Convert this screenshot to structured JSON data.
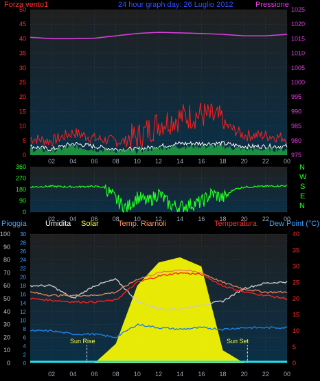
{
  "top": {
    "left_label": "Forza vento1",
    "title": "24 hour graph day: 26 Luglio 2012",
    "right_label": "Pressione",
    "colors": {
      "left": "#ff3030",
      "title": "#3050ff",
      "right": "#e040e0"
    }
  },
  "dir_letters": [
    "N",
    "W",
    "S",
    "E",
    "N"
  ],
  "bottom": {
    "labels": [
      "Pioggia",
      "Umidita",
      "Solar",
      "Temp. Riarnoli",
      "Temperatura",
      "Dew Point (°C)"
    ],
    "label_colors": [
      "#40a0ff",
      "#ffffff",
      "#ffff40",
      "#ff9060",
      "#ff3030",
      "#40a0ff"
    ],
    "sun_rise": "Sun Rise",
    "sun_set": "Sun Set"
  },
  "chart_data": [
    {
      "type": "line",
      "name": "wind-pressure",
      "x_ticks": [
        "02",
        "04",
        "06",
        "08",
        "10",
        "12",
        "14",
        "16",
        "18",
        "20",
        "22",
        "00"
      ],
      "y_left_ticks": [
        "0",
        "5",
        "10",
        "15",
        "20",
        "25",
        "30",
        "35",
        "40",
        "45",
        "50"
      ],
      "y_right_ticks": [
        "975",
        "980",
        "985",
        "990",
        "995",
        "1000",
        "1005",
        "1010",
        "1015",
        "1020",
        "1025"
      ],
      "ylim_left": [
        0,
        50
      ],
      "ylim_right": [
        975,
        1025
      ],
      "hours": [
        0,
        2,
        4,
        6,
        8,
        10,
        12,
        14,
        16,
        18,
        20,
        22,
        24
      ],
      "series": [
        {
          "key": "pressure",
          "axis": "right",
          "color": "#e040e0",
          "values": [
            1015.5,
            1015.0,
            1015.0,
            1015.2,
            1016.0,
            1016.8,
            1017.2,
            1017.0,
            1016.8,
            1016.5,
            1016.0,
            1016.0,
            1016.5
          ]
        },
        {
          "key": "gust",
          "axis": "left",
          "color": "#ff2020",
          "values": [
            5,
            4,
            7,
            5,
            4,
            4,
            9,
            11,
            12,
            10,
            6,
            6,
            5
          ]
        },
        {
          "key": "wind",
          "axis": "left",
          "color": "#ffffff",
          "values": [
            3,
            2,
            4,
            3,
            2,
            2,
            3,
            4,
            4,
            4,
            3,
            3,
            3
          ]
        },
        {
          "key": "wind_bar",
          "axis": "left",
          "color": "#20a040",
          "values": [
            2,
            1.5,
            3,
            2,
            1.5,
            1.5,
            2.5,
            3,
            3,
            3,
            2,
            2,
            2
          ]
        }
      ]
    },
    {
      "type": "line",
      "name": "wind-direction",
      "x_ticks": [
        "02",
        "04",
        "06",
        "08",
        "10",
        "12",
        "14",
        "16",
        "18",
        "20",
        "22",
        "00"
      ],
      "y_ticks": [
        "0",
        "90",
        "180",
        "270",
        "360"
      ],
      "ylim": [
        0,
        360
      ],
      "hours": [
        0,
        2,
        4,
        6,
        7,
        8,
        9,
        10,
        11,
        12,
        13,
        14,
        15,
        16,
        17,
        18,
        19,
        20,
        22,
        24
      ],
      "series": [
        {
          "key": "direction",
          "color": "#20ff20",
          "values": [
            200,
            205,
            200,
            205,
            195,
            100,
            30,
            120,
            80,
            150,
            60,
            40,
            60,
            80,
            150,
            110,
            180,
            200,
            205,
            210
          ]
        }
      ]
    },
    {
      "type": "line",
      "name": "temp-hum-rain-solar",
      "x_ticks": [
        "02",
        "04",
        "06",
        "08",
        "10",
        "12",
        "14",
        "16",
        "18",
        "20",
        "22",
        "00"
      ],
      "y_left_ticks": [
        "0",
        "10",
        "20",
        "30",
        "40",
        "50",
        "60",
        "70",
        "80",
        "90",
        "100"
      ],
      "y_rain_ticks": [
        "0",
        "2",
        "4",
        "6",
        "8",
        "10",
        "12",
        "14",
        "16",
        "18",
        "20",
        "22",
        "24",
        "26",
        "28",
        "30"
      ],
      "y_right_ticks": [
        "0",
        "5",
        "10",
        "15",
        "20",
        "25",
        "30",
        "35",
        "40"
      ],
      "ylim_left": [
        0,
        100
      ],
      "ylim_right": [
        0,
        40
      ],
      "hours": [
        0,
        2,
        4,
        6,
        8,
        10,
        12,
        14,
        16,
        18,
        20,
        22,
        24
      ],
      "series": [
        {
          "key": "humidity",
          "axis": "left",
          "color": "#c8c8c8",
          "values": [
            60,
            60,
            50,
            60,
            65,
            48,
            42,
            42,
            45,
            48,
            58,
            62,
            63
          ]
        },
        {
          "key": "temp_riarnoli",
          "axis": "right",
          "color": "#e08060",
          "values": [
            22,
            21,
            21,
            21,
            22,
            26,
            28,
            29,
            28,
            25,
            23,
            22,
            22
          ]
        },
        {
          "key": "temperature",
          "axis": "right",
          "color": "#ff2020",
          "values": [
            20,
            19.5,
            19,
            19,
            19.5,
            25,
            27,
            28,
            27.5,
            24,
            22,
            21,
            20
          ]
        },
        {
          "key": "dew_point",
          "axis": "right",
          "color": "#2080e0",
          "values": [
            10,
            10,
            9,
            9,
            8,
            12,
            11,
            10.5,
            11,
            10.5,
            11,
            11,
            11
          ]
        },
        {
          "key": "solar",
          "axis": "left",
          "color": "#ffff00",
          "fill": true,
          "values": [
            0,
            0,
            0,
            0,
            15,
            60,
            78,
            82,
            75,
            10,
            0,
            0,
            0
          ]
        }
      ],
      "sun_rise_hour": 5.3,
      "sun_set_hour": 20.3
    }
  ]
}
